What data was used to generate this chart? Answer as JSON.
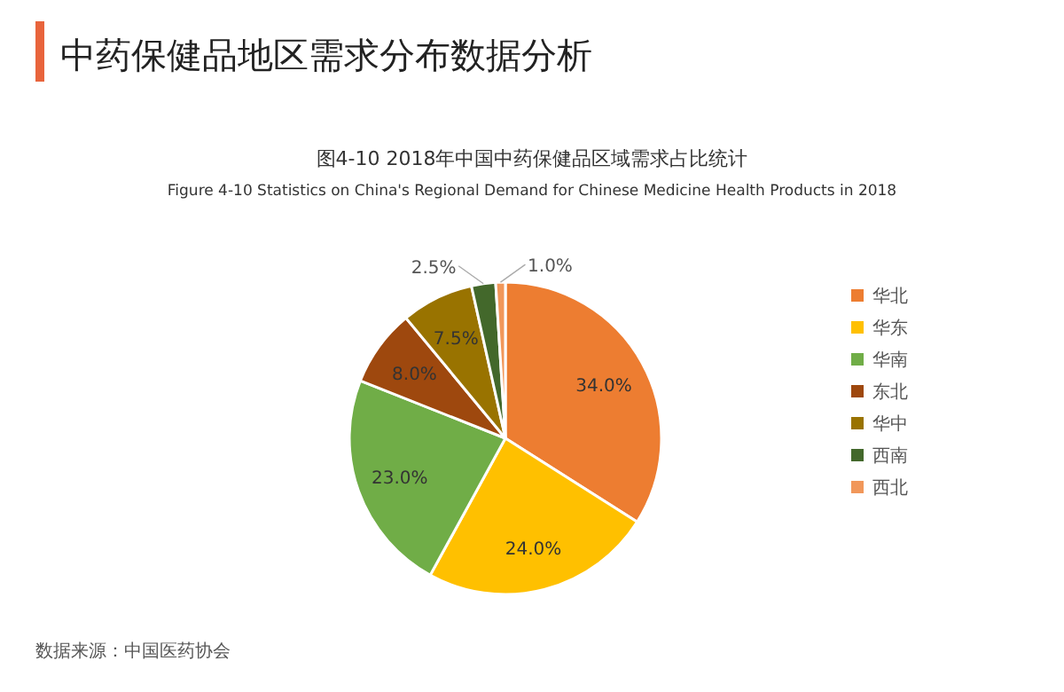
{
  "chart_data": {
    "type": "pie",
    "title": "中药保健品地区需求分布数据分析",
    "subtitle": "图4-10 2018年中国中药保健品区域需求占比统计",
    "annotations": [
      "Figure 4-10 Statistics on China's Regional Demand for Chinese Medicine Health Products in 2018",
      "数据来源：中国医药协会"
    ],
    "categories": [
      "华北",
      "华东",
      "华南",
      "东北",
      "华中",
      "西南",
      "西北"
    ],
    "values": [
      34.0,
      24.0,
      23.0,
      8.0,
      7.5,
      2.5,
      1.0
    ],
    "value_labels": [
      "34.0%",
      "24.0%",
      "23.0%",
      "8.0%",
      "7.5%",
      "2.5%",
      "1.0%"
    ],
    "colors": [
      "#ed7d31",
      "#ffc000",
      "#70ad47",
      "#9e480e",
      "#997300",
      "#43682b",
      "#f1975a"
    ],
    "legend": "right"
  }
}
